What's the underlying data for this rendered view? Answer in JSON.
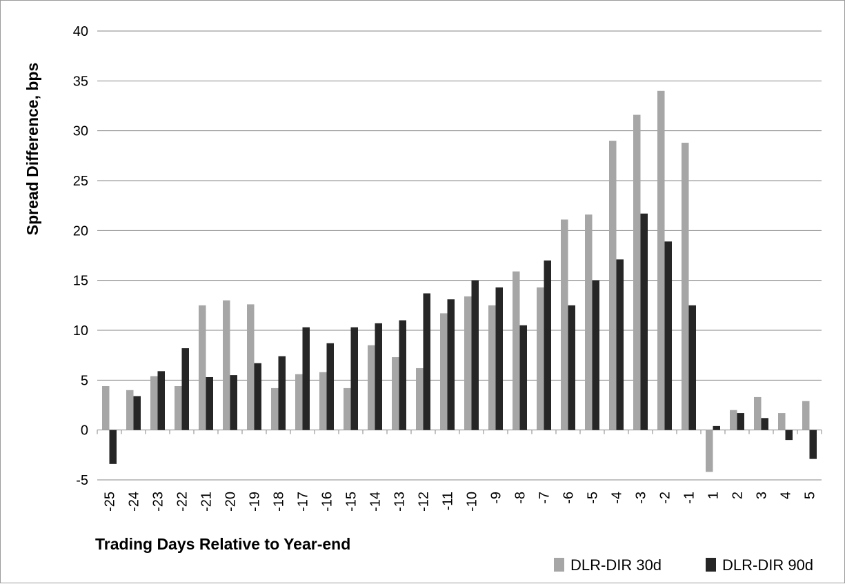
{
  "chart_data": {
    "type": "bar",
    "title": "",
    "xlabel": "Trading Days Relative to Year-end",
    "ylabel": "Spread Difference, bps",
    "ylim": [
      -5,
      40
    ],
    "yticks": [
      -5,
      0,
      5,
      10,
      15,
      20,
      25,
      30,
      35,
      40
    ],
    "grid": "horizontal",
    "legend_position": "bottom-right",
    "categories": [
      "-25",
      "-24",
      "-23",
      "-22",
      "-21",
      "-20",
      "-19",
      "-18",
      "-17",
      "-16",
      "-15",
      "-14",
      "-13",
      "-12",
      "-11",
      "-10",
      "-9",
      "-8",
      "-7",
      "-6",
      "-5",
      "-4",
      "-3",
      "-2",
      "-1",
      "1",
      "2",
      "3",
      "4",
      "5"
    ],
    "series": [
      {
        "name": "DLR-DIR 30d",
        "color": "#a6a6a6",
        "values": [
          4.4,
          4.0,
          5.4,
          4.4,
          12.5,
          13.0,
          12.6,
          4.2,
          5.6,
          5.8,
          4.2,
          8.5,
          7.3,
          6.2,
          11.7,
          13.4,
          12.5,
          15.9,
          14.3,
          21.1,
          21.6,
          29.0,
          31.6,
          34.0,
          28.8,
          -4.2,
          2.0,
          3.3,
          1.7,
          2.9
        ]
      },
      {
        "name": "DLR-DIR 90d",
        "color": "#262626",
        "values": [
          -3.4,
          3.4,
          5.9,
          8.2,
          5.3,
          5.5,
          6.7,
          7.4,
          10.3,
          8.7,
          10.3,
          10.7,
          11.0,
          13.7,
          13.1,
          15.0,
          14.3,
          10.5,
          17.0,
          12.5,
          15.0,
          17.1,
          21.7,
          18.9,
          12.5,
          0.4,
          1.7,
          1.2,
          -1.0,
          -2.9
        ]
      }
    ]
  }
}
